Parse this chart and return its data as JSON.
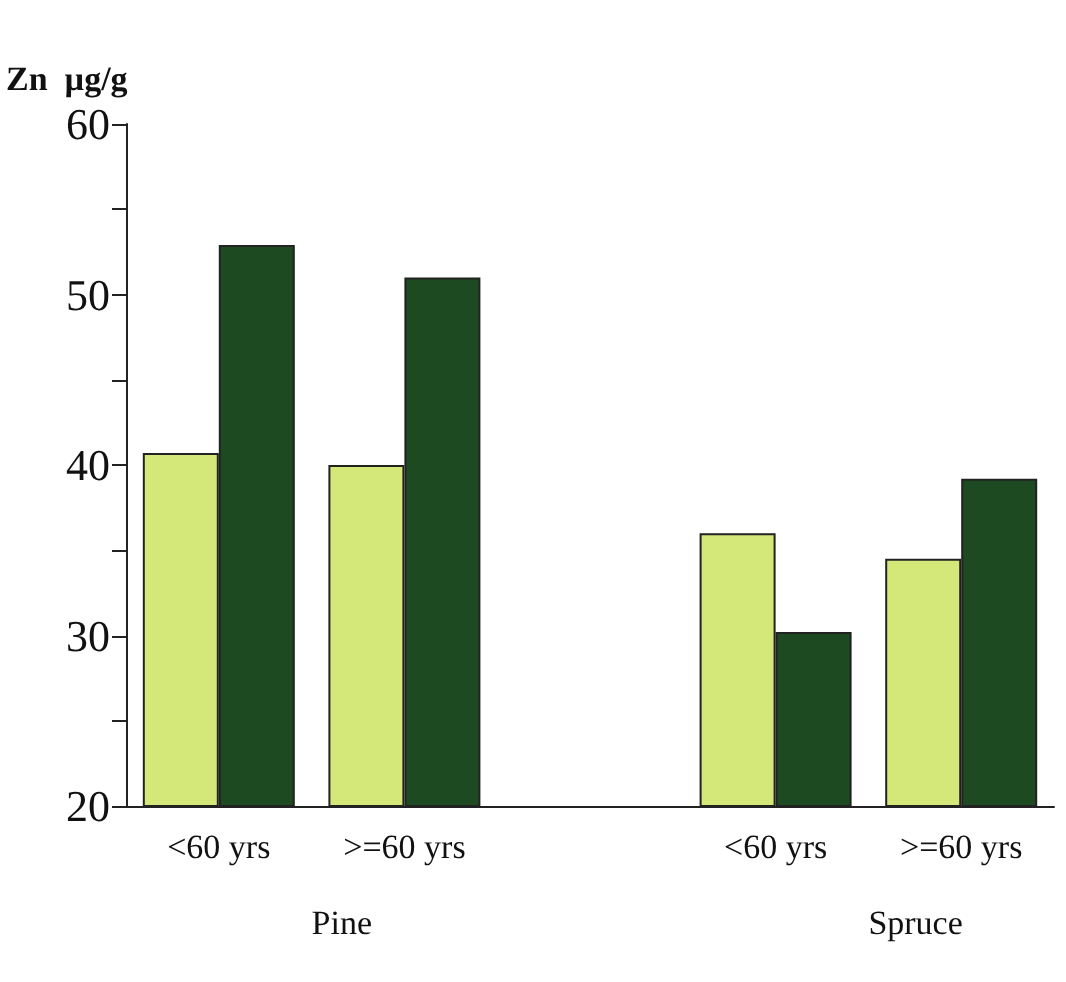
{
  "chart_data": {
    "type": "bar",
    "ylabel": "Zn  µg/g",
    "categories": [
      "<60 yrs",
      ">=60 yrs",
      null,
      "<60 yrs",
      ">=60 yrs"
    ],
    "series": [
      {
        "color": "#d4e87a",
        "values": [
          40.7,
          40.0,
          null,
          36.0,
          34.5
        ]
      },
      {
        "color": "#1e4a22",
        "values": [
          52.9,
          51.0,
          null,
          30.2,
          39.2
        ]
      }
    ],
    "ylim": [
      20,
      60
    ],
    "yticks": [
      20,
      {
        "value": 25,
        "label": null
      },
      30,
      {
        "value": 35,
        "label": null
      },
      40,
      {
        "value": 45,
        "label": null
      },
      50,
      {
        "value": 55,
        "label": null
      },
      60
    ],
    "annotations": [
      "Pine",
      "Spruce"
    ]
  }
}
